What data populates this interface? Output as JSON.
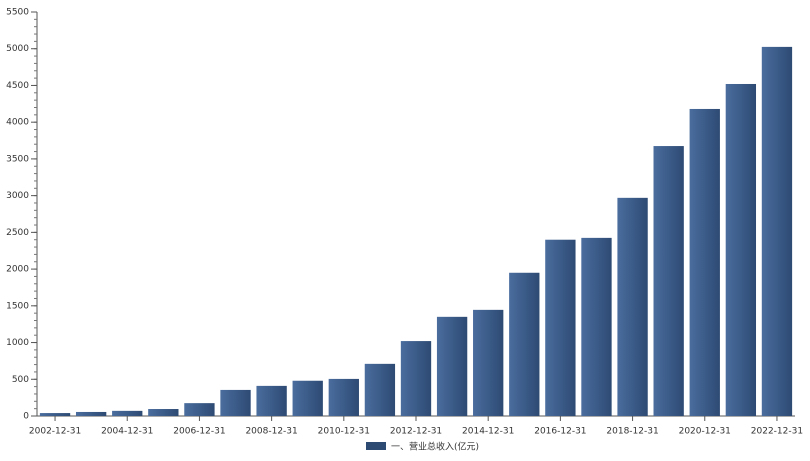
{
  "chart_data": {
    "type": "bar",
    "categories": [
      "2002-12-31",
      null,
      "2004-12-31",
      null,
      "2006-12-31",
      null,
      "2008-12-31",
      null,
      "2010-12-31",
      null,
      "2012-12-31",
      null,
      "2014-12-31",
      null,
      "2016-12-31",
      null,
      "2018-12-31",
      null,
      "2020-12-31",
      null,
      "2022-12-31"
    ],
    "series": [
      {
        "name": "一、营业总收入(亿元)",
        "color": "#2d4a73",
        "values": [
          40,
          55,
          70,
          95,
          175,
          355,
          410,
          480,
          505,
          710,
          1020,
          1350,
          1445,
          1950,
          2400,
          2425,
          2970,
          3675,
          4180,
          4520,
          5025
        ]
      }
    ],
    "ylim": [
      0,
      5500
    ],
    "yticks": [
      0,
      500,
      1000,
      1500,
      2000,
      2500,
      3000,
      3500,
      4000,
      4500,
      5000,
      5500
    ],
    "legend": "bottom"
  }
}
